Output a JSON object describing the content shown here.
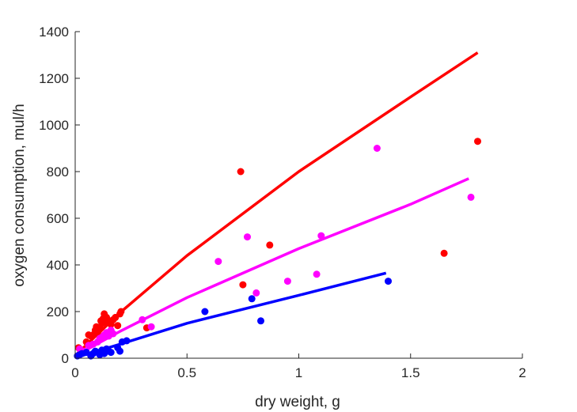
{
  "chart_data": {
    "type": "scatter",
    "title": "",
    "xlabel": "dry weight, g",
    "ylabel": "oxygen consumption, mul/h",
    "xlim": [
      0,
      2
    ],
    "ylim": [
      0,
      1400
    ],
    "xticks": [
      0,
      0.5,
      1,
      1.5,
      2
    ],
    "xtick_labels": [
      "0",
      "0.5",
      "1",
      "1.5",
      "2"
    ],
    "yticks": [
      0,
      200,
      400,
      600,
      800,
      1000,
      1200,
      1400
    ],
    "ytick_labels": [
      "0",
      "200",
      "400",
      "600",
      "800",
      "1000",
      "1200",
      "1400"
    ],
    "grid": false,
    "legend": "none",
    "series": [
      {
        "color": "#ff0000",
        "points": [
          [
            0.015,
            45
          ],
          [
            0.02,
            40
          ],
          [
            0.05,
            70
          ],
          [
            0.06,
            100
          ],
          [
            0.07,
            95
          ],
          [
            0.08,
            100
          ],
          [
            0.09,
            120
          ],
          [
            0.095,
            135
          ],
          [
            0.1,
            110
          ],
          [
            0.11,
            130
          ],
          [
            0.115,
            160
          ],
          [
            0.12,
            150
          ],
          [
            0.125,
            170
          ],
          [
            0.13,
            190
          ],
          [
            0.135,
            155
          ],
          [
            0.14,
            175
          ],
          [
            0.15,
            160
          ],
          [
            0.16,
            145
          ],
          [
            0.17,
            165
          ],
          [
            0.18,
            175
          ],
          [
            0.19,
            140
          ],
          [
            0.2,
            190
          ],
          [
            0.205,
            200
          ],
          [
            0.32,
            130
          ],
          [
            0.74,
            800
          ],
          [
            0.75,
            315
          ],
          [
            0.87,
            485
          ],
          [
            1.65,
            450
          ],
          [
            1.8,
            930
          ]
        ],
        "fit": [
          [
            0.01,
            20
          ],
          [
            0.2,
            195
          ],
          [
            0.5,
            440
          ],
          [
            1.0,
            800
          ],
          [
            1.5,
            1120
          ],
          [
            1.8,
            1310
          ]
        ]
      },
      {
        "color": "#ff00ff",
        "points": [
          [
            0.02,
            40
          ],
          [
            0.04,
            30
          ],
          [
            0.06,
            55
          ],
          [
            0.08,
            60
          ],
          [
            0.1,
            70
          ],
          [
            0.11,
            85
          ],
          [
            0.12,
            90
          ],
          [
            0.13,
            100
          ],
          [
            0.14,
            110
          ],
          [
            0.15,
            95
          ],
          [
            0.16,
            120
          ],
          [
            0.17,
            105
          ],
          [
            0.3,
            165
          ],
          [
            0.34,
            135
          ],
          [
            0.64,
            415
          ],
          [
            0.77,
            520
          ],
          [
            0.81,
            280
          ],
          [
            0.95,
            330
          ],
          [
            1.08,
            360
          ],
          [
            1.1,
            525
          ],
          [
            1.35,
            900
          ],
          [
            1.77,
            690
          ]
        ],
        "fit": [
          [
            0.01,
            15
          ],
          [
            0.2,
            115
          ],
          [
            0.5,
            260
          ],
          [
            1.0,
            470
          ],
          [
            1.5,
            660
          ],
          [
            1.76,
            770
          ]
        ]
      },
      {
        "color": "#0000ff",
        "points": [
          [
            0.01,
            10
          ],
          [
            0.02,
            15
          ],
          [
            0.03,
            20
          ],
          [
            0.05,
            25
          ],
          [
            0.07,
            10
          ],
          [
            0.08,
            20
          ],
          [
            0.09,
            30
          ],
          [
            0.1,
            25
          ],
          [
            0.11,
            15
          ],
          [
            0.12,
            35
          ],
          [
            0.13,
            20
          ],
          [
            0.14,
            40
          ],
          [
            0.15,
            30
          ],
          [
            0.16,
            25
          ],
          [
            0.19,
            45
          ],
          [
            0.2,
            30
          ],
          [
            0.21,
            70
          ],
          [
            0.23,
            75
          ],
          [
            0.58,
            200
          ],
          [
            0.79,
            255
          ],
          [
            0.83,
            160
          ],
          [
            1.4,
            330
          ]
        ],
        "fit": [
          [
            0.01,
            5
          ],
          [
            0.2,
            60
          ],
          [
            0.5,
            150
          ],
          [
            1.0,
            270
          ],
          [
            1.39,
            365
          ]
        ]
      }
    ]
  }
}
